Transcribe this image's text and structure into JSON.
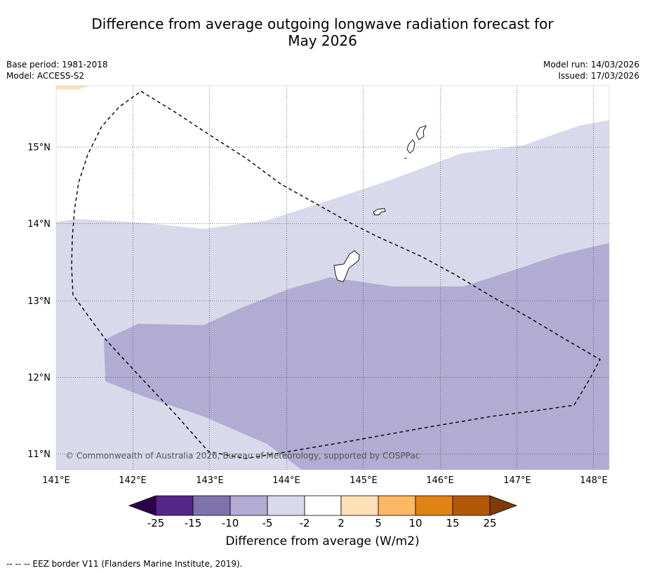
{
  "title": {
    "line1": "Difference from average outgoing longwave radiation forecast for",
    "line2": "May 2026"
  },
  "meta": {
    "base_period": "Base period: 1981-2018",
    "model": "Model: ACCESS-S2",
    "model_run": "Model run: 14/03/2026",
    "issued": "Issued: 17/03/2026"
  },
  "axes": {
    "x_ticks": [
      "141°E",
      "142°E",
      "143°E",
      "144°E",
      "145°E",
      "146°E",
      "147°E",
      "148°E"
    ],
    "y_ticks": [
      "15°N",
      "14°N",
      "13°N",
      "12°N",
      "11°N"
    ]
  },
  "credit": "© Commonwealth of Australia 2026, Bureau of Meteorology, supported by COSPPac",
  "colorbar": {
    "labels": [
      "-25",
      "-15",
      "-10",
      "-5",
      "-2",
      "2",
      "5",
      "10",
      "15",
      "25"
    ],
    "title": "Difference from average (W/m2)",
    "colors": {
      "below": "#2d004b",
      "bins": [
        "#542788",
        "#8073ac",
        "#b2abd2",
        "#d8daeb",
        "#ffffff",
        "#fee0b6",
        "#fdb863",
        "#e08214",
        "#b35806"
      ],
      "above": "#7f3b08"
    }
  },
  "legend": {
    "eez": "--  --  -- EEZ border V11 (Flanders Marine Institute, 2019)."
  }
}
